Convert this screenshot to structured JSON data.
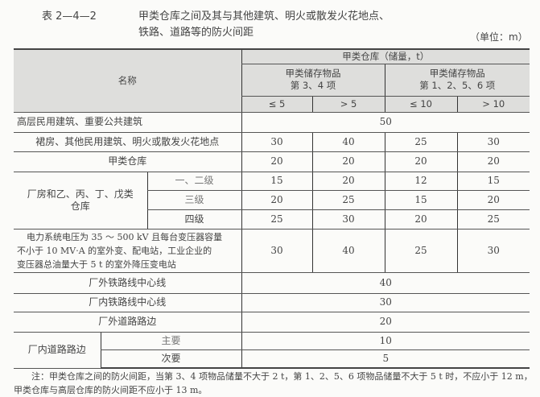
{
  "caption": {
    "table_no": "表 2—4—2",
    "title_line1": "甲类仓库之间及其与其他建筑、明火或散发火花地点、",
    "title_line2": "铁路、道路等的防火间距",
    "unit": "（单位：m）"
  },
  "header": {
    "name": "名称",
    "group": "甲类仓库（储量，t）",
    "sub1_line1": "甲类储存物品",
    "sub1_line2": "第 3、4 项",
    "sub2_line1": "甲类储存物品",
    "sub2_line2": "第 1、2、5、6 项",
    "cols": [
      "≤ 5",
      "> 5",
      "≤ 10",
      "> 10"
    ]
  },
  "rows": {
    "highrise": {
      "name": "高层民用建筑、重要公共建筑",
      "value": "50"
    },
    "podium": {
      "name": "裙房、其他民用建筑、明火或散发火花地点",
      "values": [
        "30",
        "40",
        "25",
        "30"
      ]
    },
    "classA": {
      "name": "甲类仓库",
      "values": [
        "20",
        "20",
        "20",
        "20"
      ]
    },
    "factory": {
      "name_line1": "厂房和乙、丙、丁、戊类",
      "name_line2": "仓库",
      "levels": [
        {
          "name": "一、二级",
          "values": [
            "15",
            "20",
            "12",
            "15"
          ]
        },
        {
          "name": "三级",
          "values": [
            "20",
            "25",
            "15",
            "20"
          ]
        },
        {
          "name": "四级",
          "values": [
            "25",
            "30",
            "20",
            "25"
          ]
        }
      ]
    },
    "power": {
      "name_line1": "电力系统电压为 35 ～ 500 kV 且每台变压器容量",
      "name_line2": "不小于 10 MV·A 的室外变、配电站，工业企业的",
      "name_line3": "变压器总油量大于 5 t 的室外降压变电站",
      "values": [
        "30",
        "40",
        "25",
        "30"
      ]
    },
    "rail_out": {
      "name": "厂外铁路线中心线",
      "value": "40"
    },
    "rail_in": {
      "name": "厂内铁路线中心线",
      "value": "30"
    },
    "road_out": {
      "name": "厂外道路路边",
      "value": "20"
    },
    "road_in": {
      "name": "厂内道路路边",
      "main": {
        "name": "主要",
        "value": "10"
      },
      "secondary": {
        "name": "次要",
        "value": "5"
      }
    }
  },
  "note": "注：甲类仓库之间的防火间距，当第 3、4 项物品储量不大于 2 t，第 1、2、5、6 项物品储量不大于 5 t 时，不应小于 12 m，甲类仓库与高层仓库的防火间距不应小于 13 m。"
}
